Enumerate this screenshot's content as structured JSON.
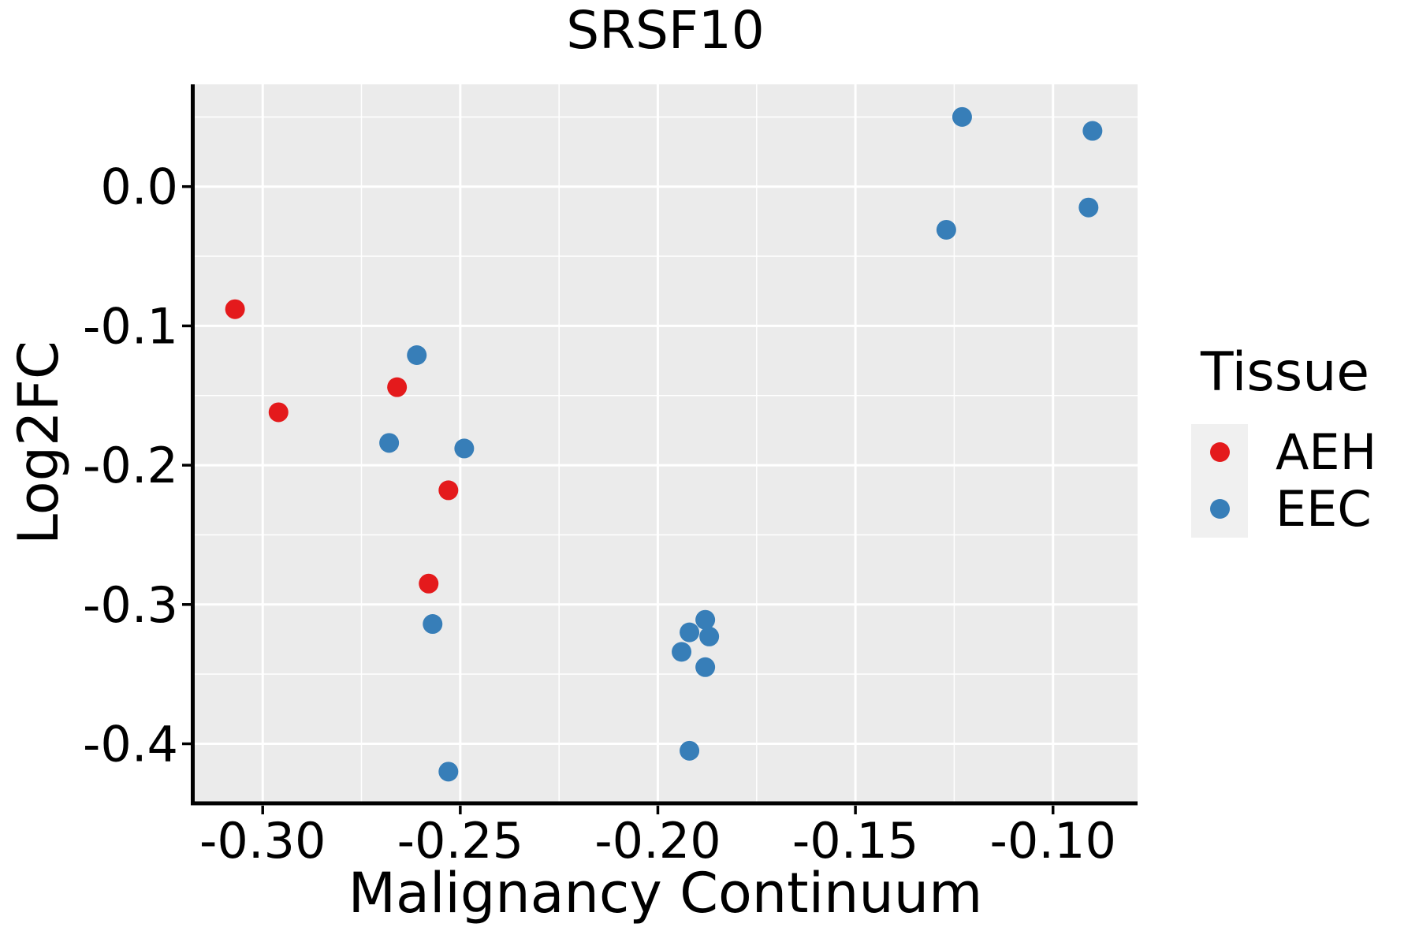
{
  "title": "SRSF10",
  "legend": {
    "title": "Tissue",
    "entries": [
      {
        "label": "AEH",
        "color": "#E41A1C"
      },
      {
        "label": "EEC",
        "color": "#377EB8"
      }
    ]
  },
  "colors": {
    "aeh_red": "#E41A1C",
    "eec_blue": "#377EB8",
    "panel_background": "#EBEBEB",
    "gridline": "#FFFFFF",
    "axis": "#000000",
    "text": "#000000",
    "legend_key_background": "#F0F0F0"
  },
  "chart_data": {
    "type": "scatter",
    "title": "SRSF10",
    "xlabel": "Malignancy Continuum",
    "ylabel": "Log2FC",
    "xlim": [
      -0.3176,
      -0.0786
    ],
    "ylim": [
      -0.4416,
      0.0734
    ],
    "grid": true,
    "legend_position": "right",
    "x_ticks": {
      "values": [
        -0.3,
        -0.25,
        -0.2,
        -0.15,
        -0.1
      ],
      "labels": [
        "-0.30",
        "-0.25",
        "-0.20",
        "-0.15",
        "-0.10"
      ]
    },
    "y_ticks": {
      "values": [
        0.0,
        -0.1,
        -0.2,
        -0.3,
        -0.4
      ],
      "labels": [
        "0.0",
        "-0.1",
        "-0.2",
        "-0.3",
        "-0.4"
      ]
    },
    "x_minor_ticks": [
      -0.275,
      -0.225,
      -0.175,
      -0.125,
      -0.075
    ],
    "y_minor_ticks": [
      0.05,
      -0.05,
      -0.15,
      -0.25,
      -0.35
    ],
    "series": [
      {
        "name": "AEH",
        "color": "#E41A1C",
        "points": [
          [
            -0.307,
            -0.088
          ],
          [
            -0.296,
            -0.162
          ],
          [
            -0.266,
            -0.144
          ],
          [
            -0.253,
            -0.218
          ],
          [
            -0.258,
            -0.285
          ]
        ]
      },
      {
        "name": "EEC",
        "color": "#377EB8",
        "points": [
          [
            -0.261,
            -0.121
          ],
          [
            -0.268,
            -0.184
          ],
          [
            -0.249,
            -0.188
          ],
          [
            -0.257,
            -0.314
          ],
          [
            -0.253,
            -0.42
          ],
          [
            -0.192,
            -0.32
          ],
          [
            -0.187,
            -0.323
          ],
          [
            -0.188,
            -0.311
          ],
          [
            -0.194,
            -0.334
          ],
          [
            -0.188,
            -0.345
          ],
          [
            -0.192,
            -0.405
          ],
          [
            -0.123,
            0.05
          ],
          [
            -0.127,
            -0.031
          ],
          [
            -0.09,
            0.04
          ],
          [
            -0.091,
            -0.015
          ]
        ]
      }
    ]
  }
}
